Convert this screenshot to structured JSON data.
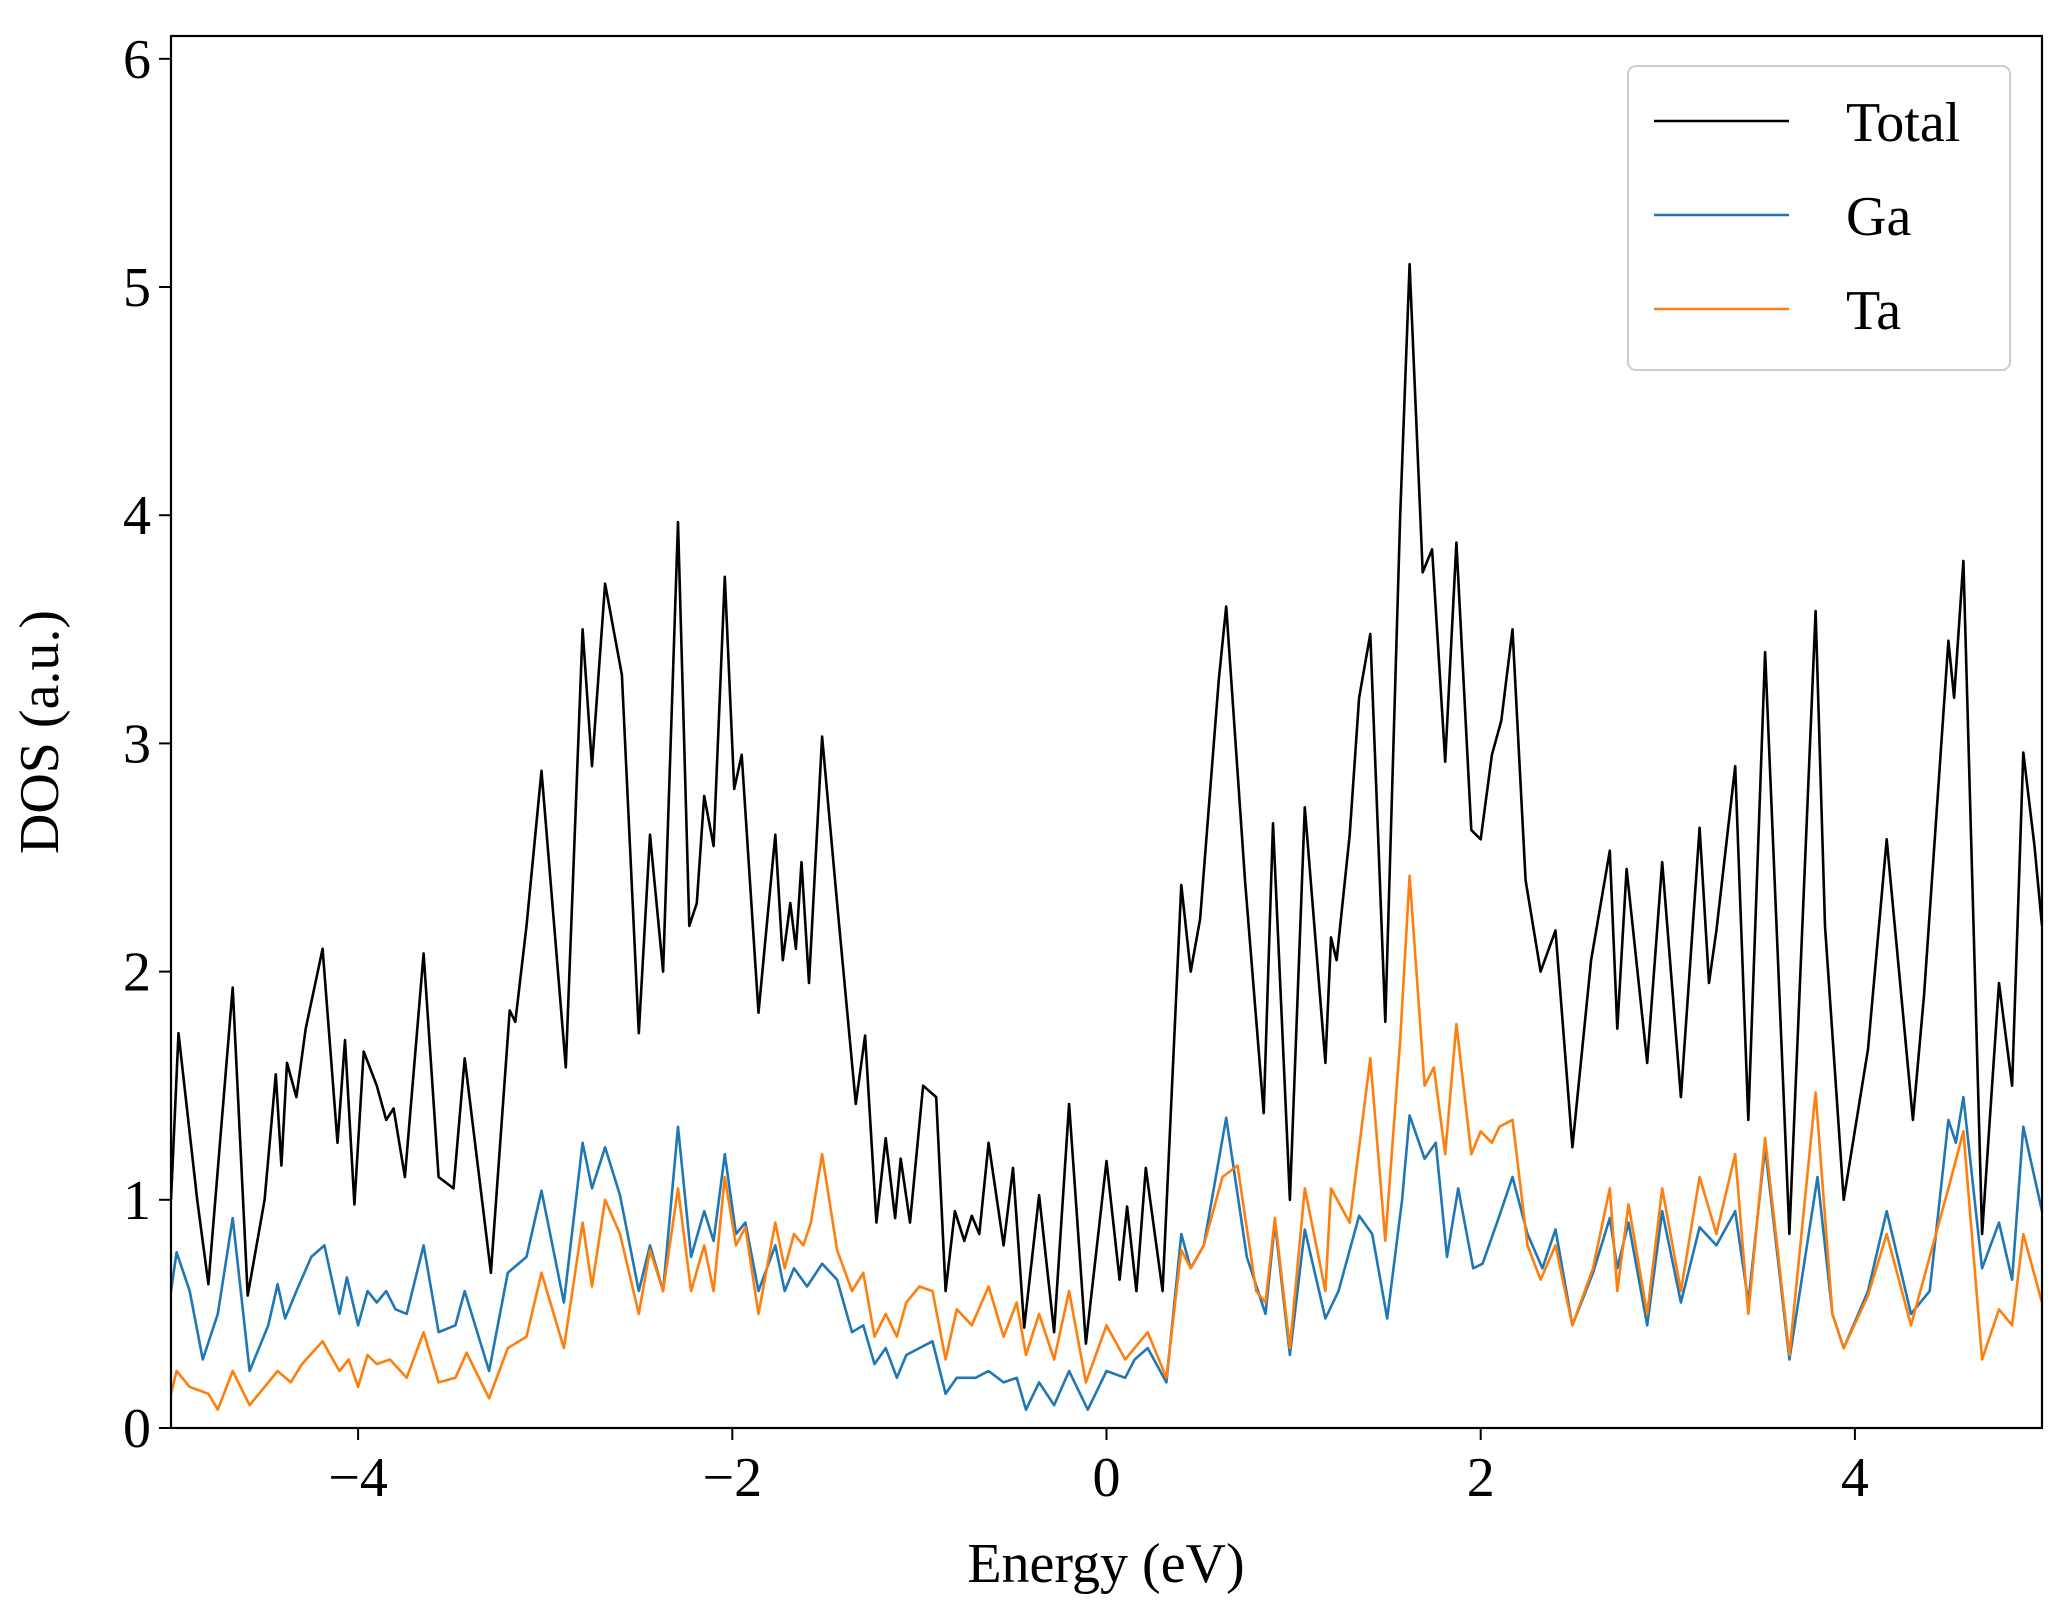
{
  "chart_data": {
    "type": "line",
    "xlabel": "Energy (eV)",
    "ylabel": "DOS (a.u.)",
    "xlim": [
      -5,
      5
    ],
    "ylim": [
      0,
      6.1
    ],
    "xticks": [
      {
        "value": -4,
        "label": "−4"
      },
      {
        "value": -2,
        "label": "−2"
      },
      0,
      2,
      4
    ],
    "yticks": [
      0,
      1,
      2,
      3,
      4,
      5,
      6
    ],
    "grid": false,
    "legend": "upper right",
    "series": [
      {
        "name": "Total",
        "color": "#000000",
        "x": [
          -5.0,
          -4.96,
          -4.86,
          -4.8,
          -4.67,
          -4.59,
          -4.5,
          -4.44,
          -4.41,
          -4.38,
          -4.33,
          -4.28,
          -4.19,
          -4.11,
          -4.07,
          -4.02,
          -3.97,
          -3.9,
          -3.85,
          -3.81,
          -3.75,
          -3.65,
          -3.57,
          -3.49,
          -3.43,
          -3.29,
          -3.19,
          -3.16,
          -3.1,
          -3.02,
          -2.89,
          -2.8,
          -2.75,
          -2.68,
          -2.59,
          -2.5,
          -2.44,
          -2.37,
          -2.29,
          -2.23,
          -2.19,
          -2.15,
          -2.1,
          -2.04,
          -1.99,
          -1.95,
          -1.86,
          -1.77,
          -1.73,
          -1.69,
          -1.66,
          -1.63,
          -1.59,
          -1.52,
          -1.44,
          -1.34,
          -1.29,
          -1.23,
          -1.18,
          -1.13,
          -1.1,
          -1.05,
          -0.98,
          -0.91,
          -0.86,
          -0.81,
          -0.76,
          -0.72,
          -0.68,
          -0.63,
          -0.55,
          -0.5,
          -0.44,
          -0.36,
          -0.28,
          -0.2,
          -0.11,
          0,
          0.07,
          0.11,
          0.16,
          0.21,
          0.3,
          0.4,
          0.45,
          0.5,
          0.6,
          0.64,
          0.74,
          0.84,
          0.89,
          0.98,
          1.06,
          1.17,
          1.2,
          1.23,
          1.3,
          1.35,
          1.41,
          1.49,
          1.57,
          1.62,
          1.69,
          1.74,
          1.81,
          1.87,
          1.95,
          2.0,
          2.06,
          2.11,
          2.17,
          2.24,
          2.32,
          2.4,
          2.49,
          2.59,
          2.69,
          2.73,
          2.78,
          2.89,
          2.97,
          3.07,
          3.17,
          3.22,
          3.26,
          3.36,
          3.43,
          3.52,
          3.65,
          3.79,
          3.84,
          3.94,
          4.07,
          4.17,
          4.31,
          4.37,
          4.5,
          4.53,
          4.58,
          4.68,
          4.77,
          4.84,
          4.9,
          4.96,
          5.0
        ],
        "values": [
          1.0,
          1.73,
          1.0,
          0.63,
          1.93,
          0.58,
          1.0,
          1.55,
          1.15,
          1.6,
          1.45,
          1.75,
          2.1,
          1.25,
          1.7,
          0.98,
          1.65,
          1.5,
          1.35,
          1.4,
          1.1,
          2.08,
          1.1,
          1.05,
          1.62,
          0.68,
          1.83,
          1.78,
          2.2,
          2.88,
          1.58,
          3.5,
          2.9,
          3.7,
          3.3,
          1.73,
          2.6,
          2.0,
          3.97,
          2.2,
          2.3,
          2.77,
          2.55,
          3.73,
          2.8,
          2.95,
          1.82,
          2.6,
          2.05,
          2.3,
          2.1,
          2.48,
          1.95,
          3.03,
          2.3,
          1.42,
          1.72,
          0.9,
          1.27,
          0.92,
          1.18,
          0.9,
          1.5,
          1.45,
          0.6,
          0.95,
          0.82,
          0.93,
          0.85,
          1.25,
          0.8,
          1.14,
          0.44,
          1.02,
          0.42,
          1.42,
          0.37,
          1.17,
          0.65,
          0.97,
          0.6,
          1.14,
          0.6,
          2.38,
          2.0,
          2.23,
          3.28,
          3.6,
          2.4,
          1.38,
          2.65,
          1.0,
          2.72,
          1.6,
          2.15,
          2.05,
          2.6,
          3.2,
          3.48,
          1.78,
          4.0,
          5.1,
          3.75,
          3.85,
          2.92,
          3.88,
          2.62,
          2.58,
          2.95,
          3.1,
          3.5,
          2.4,
          2.0,
          2.18,
          1.23,
          2.05,
          2.53,
          1.75,
          2.45,
          1.6,
          2.48,
          1.45,
          2.63,
          1.95,
          2.18,
          2.9,
          1.35,
          3.4,
          0.85,
          3.58,
          2.2,
          1.0,
          1.66,
          2.58,
          1.35,
          1.9,
          3.45,
          3.2,
          3.8,
          0.85,
          1.95,
          1.5,
          2.96,
          2.55,
          2.2
        ]
      },
      {
        "name": "Ga",
        "color": "#1f77b4",
        "x": [
          -5.0,
          -4.97,
          -4.9,
          -4.83,
          -4.75,
          -4.67,
          -4.58,
          -4.48,
          -4.43,
          -4.39,
          -4.33,
          -4.25,
          -4.18,
          -4.1,
          -4.06,
          -4.0,
          -3.95,
          -3.9,
          -3.85,
          -3.8,
          -3.74,
          -3.65,
          -3.57,
          -3.48,
          -3.43,
          -3.3,
          -3.2,
          -3.1,
          -3.02,
          -2.9,
          -2.8,
          -2.75,
          -2.68,
          -2.6,
          -2.5,
          -2.44,
          -2.37,
          -2.29,
          -2.22,
          -2.15,
          -2.1,
          -2.04,
          -1.98,
          -1.93,
          -1.86,
          -1.77,
          -1.72,
          -1.67,
          -1.6,
          -1.52,
          -1.44,
          -1.36,
          -1.3,
          -1.24,
          -1.18,
          -1.12,
          -1.07,
          -1.0,
          -0.93,
          -0.86,
          -0.8,
          -0.7,
          -0.63,
          -0.55,
          -0.48,
          -0.43,
          -0.36,
          -0.28,
          -0.2,
          -0.1,
          0.0,
          0.1,
          0.15,
          0.22,
          0.32,
          0.4,
          0.45,
          0.52,
          0.64,
          0.75,
          0.85,
          0.9,
          0.98,
          1.06,
          1.17,
          1.24,
          1.35,
          1.42,
          1.5,
          1.58,
          1.62,
          1.7,
          1.76,
          1.82,
          1.88,
          1.96,
          2.01,
          2.1,
          2.17,
          2.25,
          2.33,
          2.4,
          2.49,
          2.6,
          2.69,
          2.73,
          2.79,
          2.89,
          2.97,
          3.07,
          3.17,
          3.26,
          3.36,
          3.43,
          3.52,
          3.65,
          3.8,
          3.88,
          3.94,
          4.07,
          4.17,
          4.3,
          4.4,
          4.5,
          4.54,
          4.58,
          4.68,
          4.77,
          4.84,
          4.9,
          5.0
        ],
        "values": [
          0.6,
          0.77,
          0.6,
          0.3,
          0.5,
          0.92,
          0.25,
          0.45,
          0.63,
          0.48,
          0.6,
          0.75,
          0.8,
          0.5,
          0.66,
          0.45,
          0.6,
          0.55,
          0.6,
          0.52,
          0.5,
          0.8,
          0.42,
          0.45,
          0.6,
          0.25,
          0.68,
          0.75,
          1.04,
          0.55,
          1.25,
          1.05,
          1.23,
          1.02,
          0.6,
          0.8,
          0.6,
          1.32,
          0.75,
          0.95,
          0.82,
          1.2,
          0.85,
          0.9,
          0.6,
          0.8,
          0.6,
          0.7,
          0.62,
          0.72,
          0.65,
          0.42,
          0.45,
          0.28,
          0.35,
          0.22,
          0.32,
          0.35,
          0.38,
          0.15,
          0.22,
          0.22,
          0.25,
          0.2,
          0.22,
          0.08,
          0.2,
          0.1,
          0.25,
          0.08,
          0.25,
          0.22,
          0.3,
          0.35,
          0.2,
          0.85,
          0.7,
          0.8,
          1.36,
          0.75,
          0.5,
          0.9,
          0.32,
          0.87,
          0.48,
          0.6,
          0.93,
          0.85,
          0.48,
          1.0,
          1.37,
          1.18,
          1.25,
          0.75,
          1.05,
          0.7,
          0.72,
          0.93,
          1.1,
          0.85,
          0.7,
          0.87,
          0.45,
          0.68,
          0.92,
          0.7,
          0.9,
          0.45,
          0.95,
          0.55,
          0.88,
          0.8,
          0.95,
          0.55,
          1.23,
          0.3,
          1.1,
          0.5,
          0.35,
          0.6,
          0.95,
          0.5,
          0.6,
          1.35,
          1.25,
          1.45,
          0.7,
          0.9,
          0.65,
          1.32,
          0.95
        ]
      },
      {
        "name": "Ta",
        "color": "#ff7f0e",
        "x": [
          -5.0,
          -4.97,
          -4.9,
          -4.8,
          -4.75,
          -4.67,
          -4.58,
          -4.48,
          -4.43,
          -4.36,
          -4.3,
          -4.19,
          -4.1,
          -4.05,
          -4.0,
          -3.95,
          -3.9,
          -3.83,
          -3.74,
          -3.65,
          -3.57,
          -3.48,
          -3.42,
          -3.3,
          -3.2,
          -3.1,
          -3.02,
          -2.9,
          -2.8,
          -2.75,
          -2.68,
          -2.6,
          -2.5,
          -2.44,
          -2.37,
          -2.29,
          -2.22,
          -2.15,
          -2.1,
          -2.04,
          -1.98,
          -1.93,
          -1.86,
          -1.77,
          -1.72,
          -1.67,
          -1.62,
          -1.58,
          -1.52,
          -1.44,
          -1.36,
          -1.3,
          -1.24,
          -1.18,
          -1.12,
          -1.07,
          -1.0,
          -0.93,
          -0.86,
          -0.8,
          -0.72,
          -0.63,
          -0.55,
          -0.48,
          -0.43,
          -0.36,
          -0.28,
          -0.2,
          -0.11,
          0.0,
          0.1,
          0.15,
          0.22,
          0.32,
          0.4,
          0.45,
          0.52,
          0.62,
          0.7,
          0.8,
          0.85,
          0.9,
          0.98,
          1.06,
          1.17,
          1.2,
          1.3,
          1.41,
          1.49,
          1.57,
          1.62,
          1.7,
          1.75,
          1.81,
          1.87,
          1.95,
          2.0,
          2.06,
          2.1,
          2.17,
          2.25,
          2.32,
          2.4,
          2.49,
          2.6,
          2.69,
          2.73,
          2.79,
          2.89,
          2.97,
          3.07,
          3.17,
          3.26,
          3.36,
          3.43,
          3.52,
          3.65,
          3.79,
          3.88,
          3.94,
          4.07,
          4.17,
          4.3,
          4.4,
          4.5,
          4.58,
          4.68,
          4.77,
          4.84,
          4.9,
          5.0
        ],
        "values": [
          0.15,
          0.25,
          0.18,
          0.15,
          0.08,
          0.25,
          0.1,
          0.2,
          0.25,
          0.2,
          0.28,
          0.38,
          0.25,
          0.3,
          0.18,
          0.32,
          0.28,
          0.3,
          0.22,
          0.42,
          0.2,
          0.22,
          0.33,
          0.13,
          0.35,
          0.4,
          0.68,
          0.35,
          0.9,
          0.62,
          1.0,
          0.85,
          0.5,
          0.78,
          0.6,
          1.05,
          0.6,
          0.8,
          0.6,
          1.1,
          0.8,
          0.88,
          0.5,
          0.9,
          0.7,
          0.85,
          0.8,
          0.9,
          1.2,
          0.78,
          0.6,
          0.68,
          0.4,
          0.5,
          0.4,
          0.55,
          0.62,
          0.6,
          0.3,
          0.52,
          0.45,
          0.62,
          0.4,
          0.55,
          0.32,
          0.5,
          0.3,
          0.6,
          0.2,
          0.45,
          0.3,
          0.35,
          0.42,
          0.22,
          0.78,
          0.7,
          0.8,
          1.1,
          1.15,
          0.6,
          0.55,
          0.92,
          0.35,
          1.05,
          0.6,
          1.05,
          0.9,
          1.62,
          0.82,
          1.7,
          2.42,
          1.5,
          1.58,
          1.2,
          1.77,
          1.2,
          1.3,
          1.25,
          1.32,
          1.35,
          0.8,
          0.65,
          0.8,
          0.45,
          0.7,
          1.05,
          0.6,
          0.98,
          0.5,
          1.05,
          0.6,
          1.1,
          0.85,
          1.2,
          0.5,
          1.27,
          0.32,
          1.47,
          0.5,
          0.35,
          0.58,
          0.85,
          0.45,
          0.75,
          1.05,
          1.3,
          0.3,
          0.52,
          0.45,
          0.85,
          0.55
        ]
      }
    ]
  }
}
